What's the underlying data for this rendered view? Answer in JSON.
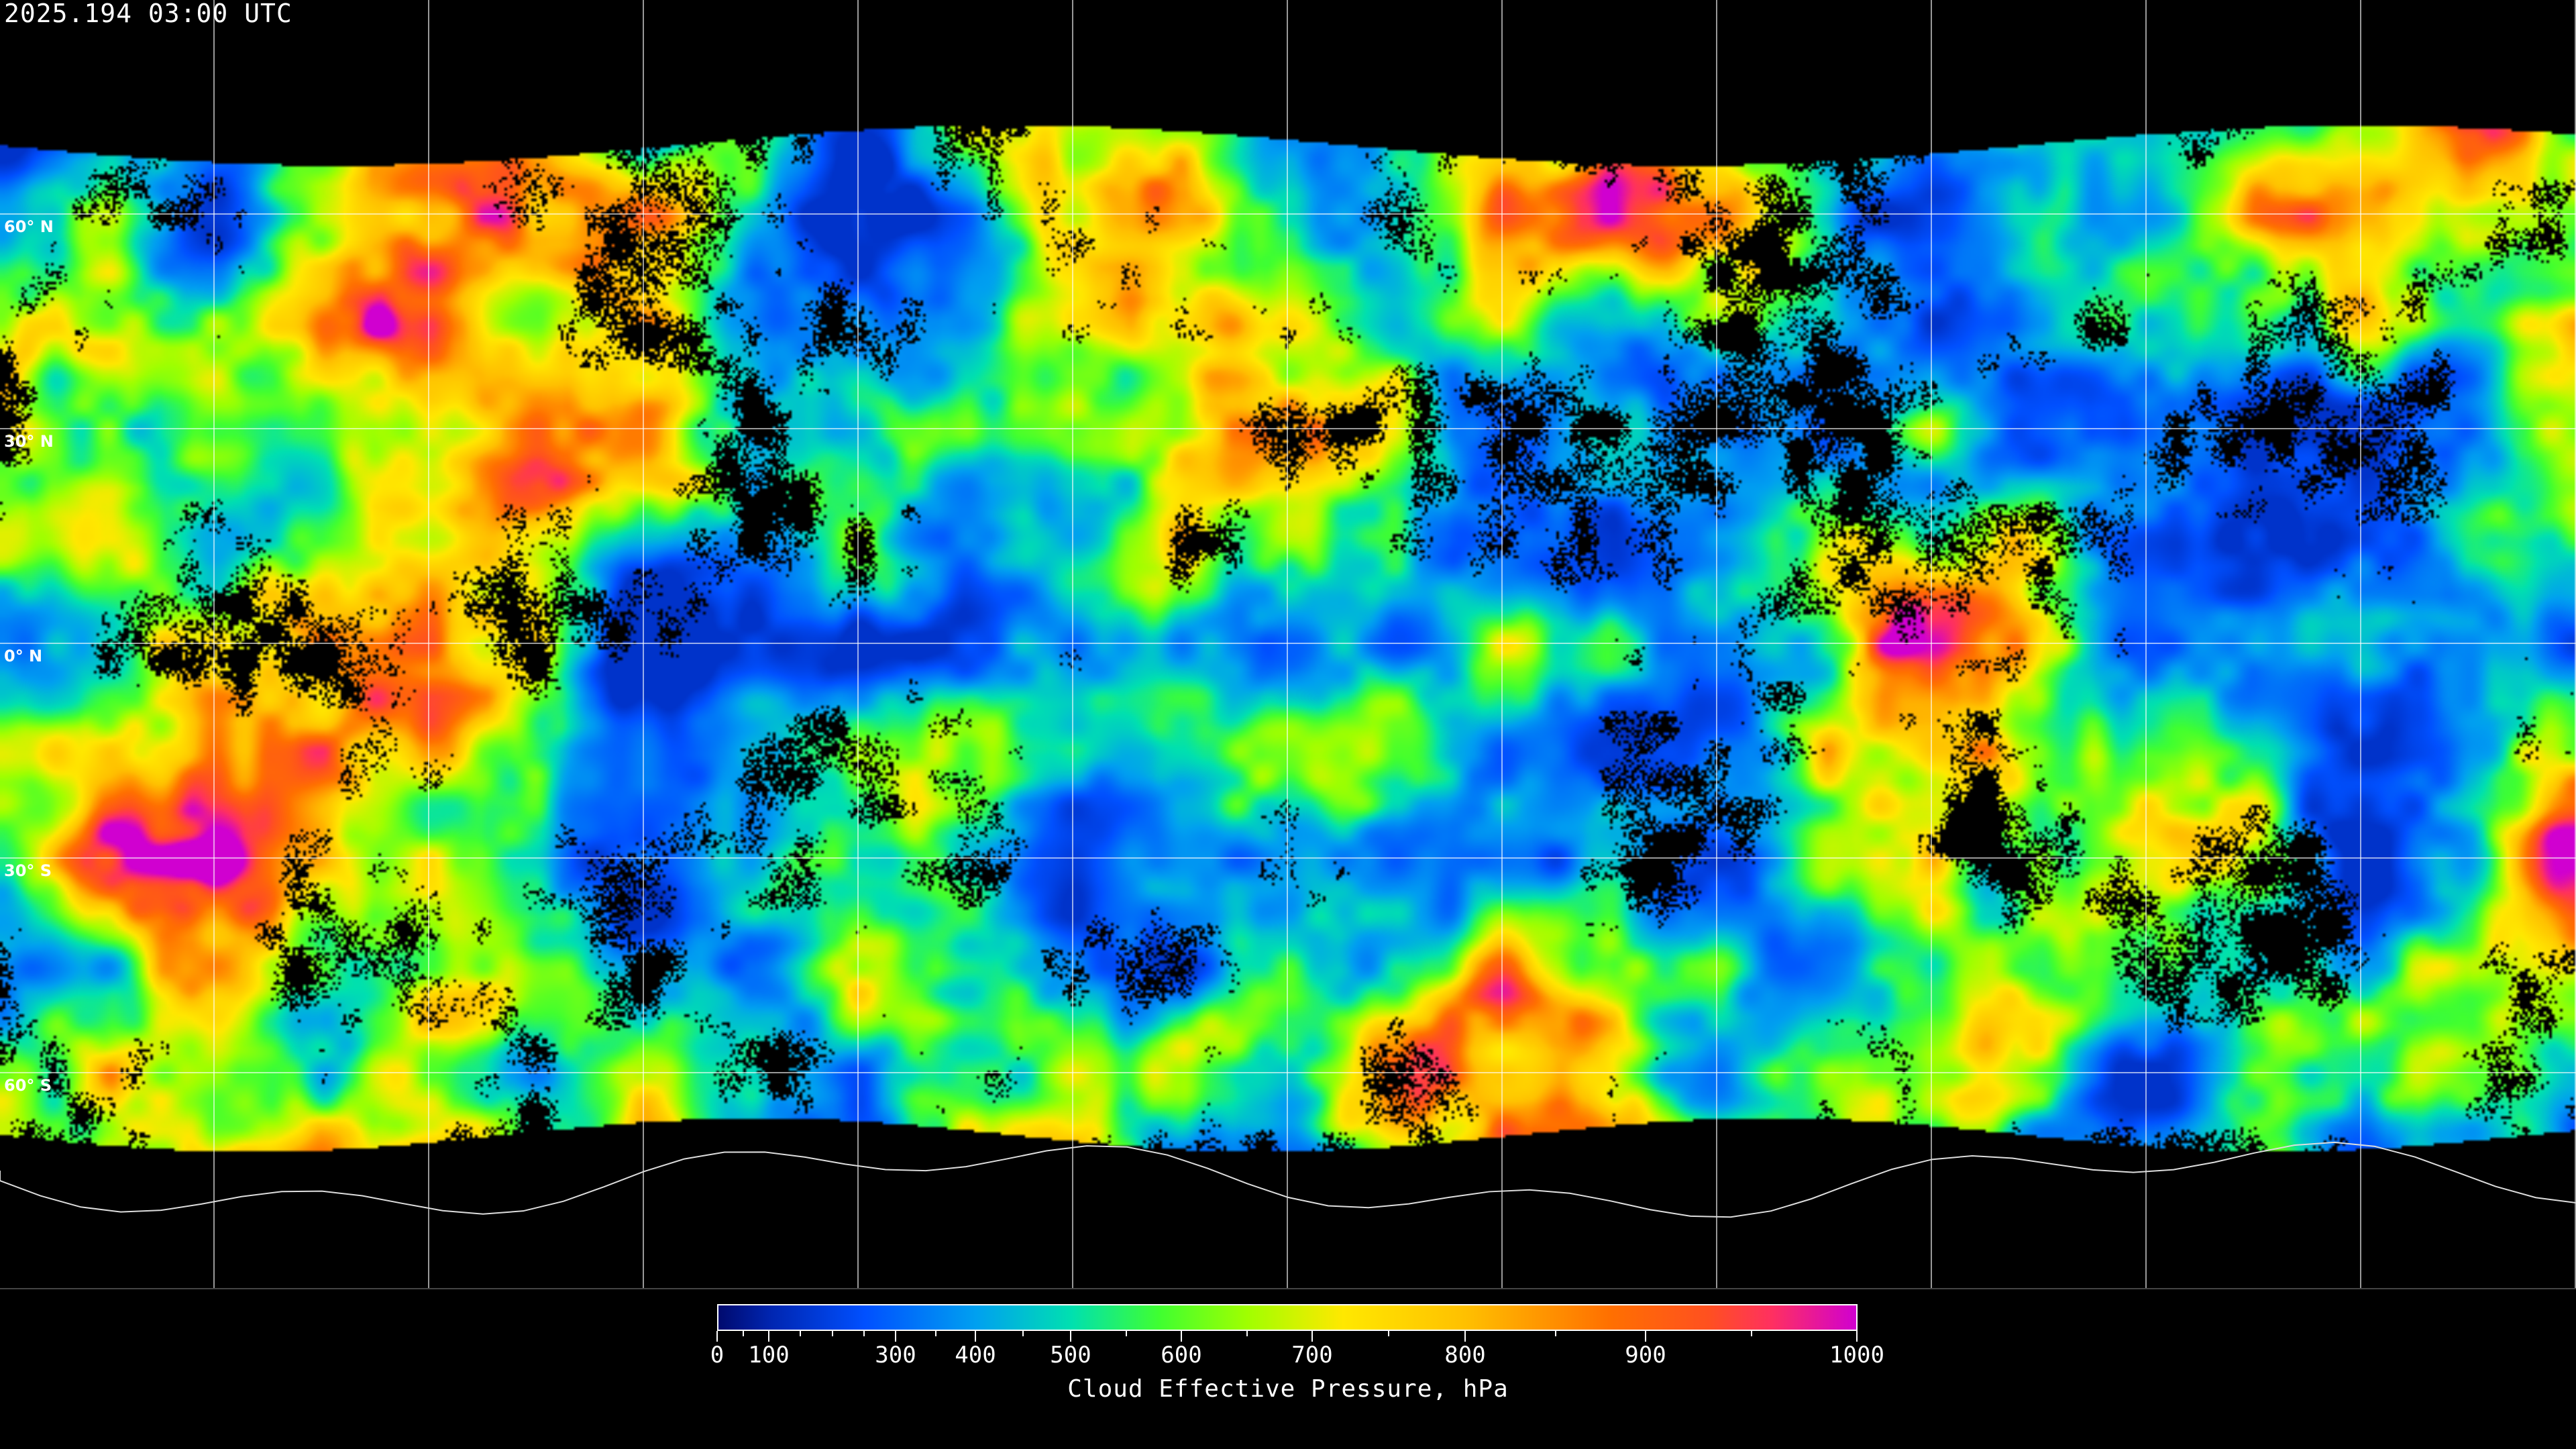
{
  "title": "2025.194 03:00 UTC",
  "map": {
    "latitude_labels": [
      "60° N",
      "30° N",
      "0° N",
      "30° S",
      "60° S"
    ],
    "latitude_values": [
      60,
      30,
      0,
      -30,
      -60
    ],
    "longitude_grid_spacing_deg": 30,
    "clear_sky_color": "#000000",
    "coastline_color": "#ffffff",
    "grid_color": "#ffffff"
  },
  "colorbar": {
    "title": "Cloud Effective Pressure, hPa",
    "range": [
      0,
      1000
    ],
    "major_ticks": [
      "0",
      "100",
      "300",
      "400",
      "500",
      "600",
      "700",
      "800",
      "900",
      "1000"
    ],
    "minor_ticks": [
      50,
      150,
      200,
      250,
      350,
      450,
      550,
      650,
      750,
      850,
      950
    ],
    "colormap": [
      {
        "value": 0,
        "color": "#000a6e"
      },
      {
        "value": 100,
        "color": "#0025b0"
      },
      {
        "value": 250,
        "color": "#0050ff"
      },
      {
        "value": 400,
        "color": "#00a0f0"
      },
      {
        "value": 500,
        "color": "#00e0b0"
      },
      {
        "value": 580,
        "color": "#40ff30"
      },
      {
        "value": 650,
        "color": "#a0ff00"
      },
      {
        "value": 720,
        "color": "#ffe800"
      },
      {
        "value": 800,
        "color": "#ffc000"
      },
      {
        "value": 880,
        "color": "#ff7000"
      },
      {
        "value": 930,
        "color": "#ff5020"
      },
      {
        "value": 960,
        "color": "#ff3060"
      },
      {
        "value": 1000,
        "color": "#d000d0"
      }
    ]
  }
}
